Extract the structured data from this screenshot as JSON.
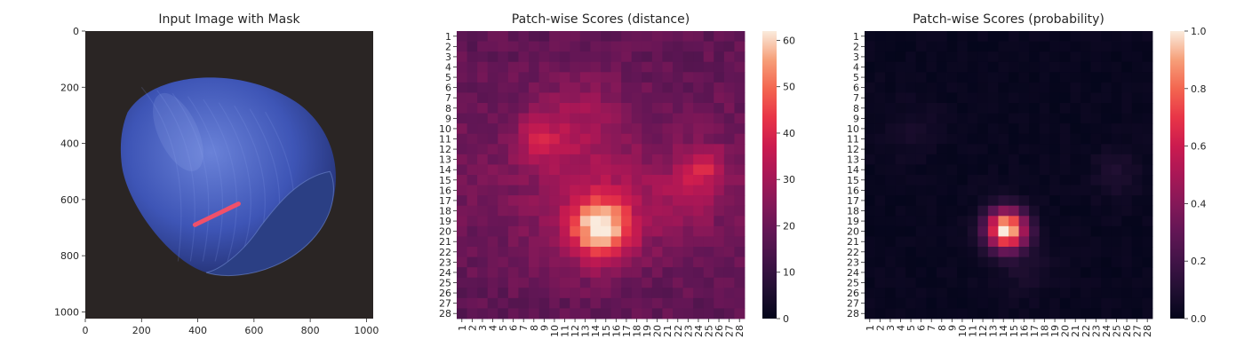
{
  "chart_data": [
    {
      "type": "image",
      "title": "Input Image with Mask",
      "xticks": [
        "0",
        "200",
        "400",
        "600",
        "800",
        "1000"
      ],
      "yticks": [
        "0",
        "200",
        "400",
        "600",
        "800",
        "1000"
      ],
      "xlim": [
        0,
        1024
      ],
      "ylim": [
        0,
        1024
      ],
      "image": {
        "background_color": "#2a2524",
        "object": "hazelnut",
        "object_color": "#3f55b8",
        "mask_color": "#f0506a",
        "mask_segment": {
          "x1": 390,
          "y1": 690,
          "x2": 545,
          "y2": 615
        }
      }
    },
    {
      "type": "heatmap",
      "title": "Patch-wise Scores (distance)",
      "rows": 28,
      "cols": 28,
      "row_labels": [
        "1",
        "2",
        "3",
        "4",
        "5",
        "6",
        "7",
        "8",
        "9",
        "10",
        "11",
        "12",
        "13",
        "14",
        "15",
        "16",
        "17",
        "18",
        "19",
        "20",
        "21",
        "22",
        "23",
        "24",
        "25",
        "26",
        "27",
        "28"
      ],
      "col_labels": [
        "1",
        "2",
        "3",
        "4",
        "5",
        "6",
        "7",
        "8",
        "9",
        "10",
        "11",
        "12",
        "13",
        "14",
        "15",
        "16",
        "17",
        "18",
        "19",
        "20",
        "21",
        "22",
        "23",
        "24",
        "25",
        "26",
        "27",
        "28"
      ],
      "colorbar": {
        "min": 0,
        "max": 62,
        "ticks": [
          "0",
          "10",
          "20",
          "30",
          "40",
          "50",
          "60"
        ]
      },
      "colormap": "rocket",
      "base": 22,
      "row_taper": 0.7,
      "blobs": [
        {
          "cx": 14.5,
          "cy": 19.7,
          "amp": 38,
          "sigma": 2.1
        },
        {
          "cx": 13.8,
          "cy": 17.5,
          "amp": 8,
          "sigma": 4.5
        },
        {
          "cx": 8.5,
          "cy": 11.0,
          "amp": 13,
          "sigma": 1.6
        },
        {
          "cx": 24.5,
          "cy": 13.8,
          "amp": 15,
          "sigma": 1.5
        },
        {
          "cx": 22.5,
          "cy": 17.0,
          "amp": 8,
          "sigma": 2.5
        },
        {
          "cx": 12.5,
          "cy": 9.0,
          "amp": 9,
          "sigma": 3.0
        }
      ],
      "noise_amplitude": 3
    },
    {
      "type": "heatmap",
      "title": "Patch-wise Scores (probability)",
      "rows": 28,
      "cols": 28,
      "row_labels": [
        "1",
        "2",
        "3",
        "4",
        "5",
        "6",
        "7",
        "8",
        "9",
        "10",
        "11",
        "12",
        "13",
        "14",
        "15",
        "16",
        "17",
        "18",
        "19",
        "20",
        "21",
        "22",
        "23",
        "24",
        "25",
        "26",
        "27",
        "28"
      ],
      "col_labels": [
        "1",
        "2",
        "3",
        "4",
        "5",
        "6",
        "7",
        "8",
        "9",
        "10",
        "11",
        "12",
        "13",
        "14",
        "15",
        "16",
        "17",
        "18",
        "19",
        "20",
        "21",
        "22",
        "23",
        "24",
        "25",
        "26",
        "27",
        "28"
      ],
      "colorbar": {
        "min": 0,
        "max": 1,
        "ticks": [
          "0.0",
          "0.2",
          "0.4",
          "0.6",
          "0.8",
          "1.0"
        ]
      },
      "colormap": "rocket",
      "base": 0.02,
      "blobs": [
        {
          "cx": 14.3,
          "cy": 19.8,
          "amp": 1.0,
          "sigma": 1.35
        },
        {
          "cx": 25.0,
          "cy": 14.5,
          "amp": 0.07,
          "sigma": 1.6
        },
        {
          "cx": 16.0,
          "cy": 23.5,
          "amp": 0.06,
          "sigma": 2.0
        },
        {
          "cx": 5.0,
          "cy": 10.0,
          "amp": 0.04,
          "sigma": 2.0
        }
      ],
      "noise_amplitude": 0.015
    }
  ]
}
